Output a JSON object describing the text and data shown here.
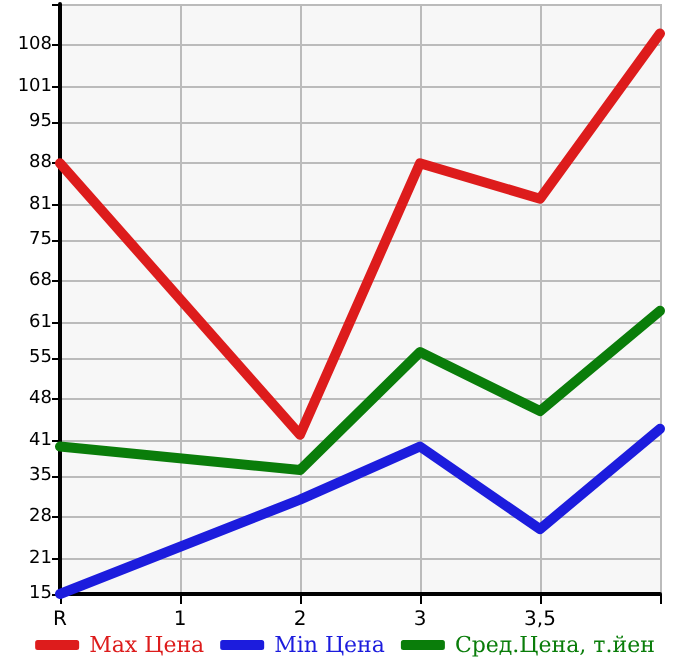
{
  "chart_data": {
    "type": "line",
    "categories": [
      "R",
      "1",
      "2",
      "3",
      "3,5",
      null
    ],
    "series": [
      {
        "name": "Max Цена",
        "color": "#dd1c1c",
        "values": [
          88,
          null,
          42,
          88,
          82,
          110
        ]
      },
      {
        "name": "Min Цена",
        "color": "#1c1cdd",
        "values": [
          15,
          null,
          31,
          40,
          26,
          43
        ]
      },
      {
        "name": "Сред.Цена, т.йен",
        "color": "#0a7d0a",
        "values": [
          40,
          null,
          36,
          56,
          46,
          63
        ]
      }
    ],
    "ylim": [
      15,
      115
    ],
    "yticks": [
      15,
      21,
      28,
      35,
      41,
      48,
      55,
      61,
      68,
      75,
      81,
      88,
      95,
      101,
      108,
      {
        "value": 115,
        "label": null
      }
    ],
    "grid": true,
    "legend": "bottom",
    "marker": "none",
    "line_style": "solid"
  }
}
